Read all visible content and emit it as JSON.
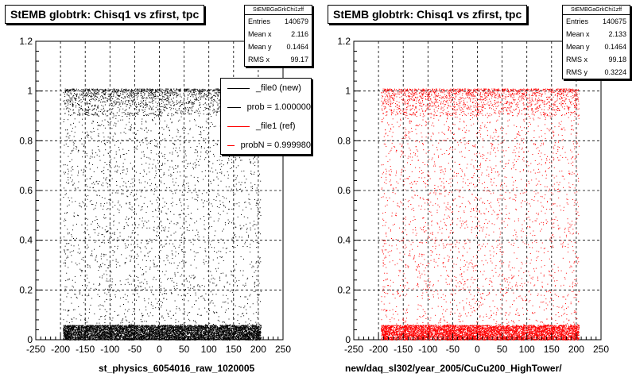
{
  "chart_data": [
    {
      "type": "scatter",
      "title": "StEMB globtrk: Chisq1 vs zfirst, tpc",
      "xlabel": "st_physics_6054016_raw_1020005",
      "ylabel": "",
      "xlim": [
        -250,
        250
      ],
      "ylim": [
        0,
        1.2
      ],
      "x_ticks": [
        "-250",
        "-200",
        "-150",
        "-100",
        "-50",
        "0",
        "50",
        "100",
        "150",
        "200",
        "250"
      ],
      "y_ticks": [
        "0",
        "0.2",
        "0.4",
        "0.6",
        "0.8",
        "1",
        "1.2"
      ],
      "grid": true,
      "marker_color": "#000000",
      "stats": {
        "name": "StEMBGaGrkChi1zff",
        "rows": [
          {
            "label": "Entries",
            "value": "140679"
          },
          {
            "label": "Mean x",
            "value": "2.116"
          },
          {
            "label": "Mean y",
            "value": "0.1464"
          },
          {
            "label": "RMS x",
            "value": "99.17"
          }
        ]
      },
      "series": [
        {
          "name": "_file0 (new)",
          "color": "#000000",
          "bands": [
            {
              "x": [
                -195,
                205
              ],
              "y": [
                0.0,
                0.06
              ],
              "density": "very high"
            },
            {
              "x": [
                -195,
                205
              ],
              "y": [
                0.9,
                1.01
              ],
              "density": "high"
            },
            {
              "x": [
                -195,
                205
              ],
              "y": [
                0.06,
                0.9
              ],
              "density": "low"
            }
          ]
        }
      ],
      "legend": {
        "position": "top-right",
        "entries": [
          {
            "label": "_file0 (new)",
            "color": "#000000"
          },
          {
            "label": "prob = 1.000000",
            "color": "#000000"
          },
          {
            "label": "_file1 (ref)",
            "color": "#ff0000"
          },
          {
            "label": "probN = 0.999980",
            "color": "#ff0000"
          }
        ]
      }
    },
    {
      "type": "scatter",
      "title": "StEMB globtrk: Chisq1 vs zfirst, tpc",
      "xlabel": "new/daq_sl302/year_2005/CuCu200_HighTower/",
      "ylabel": "",
      "xlim": [
        -250,
        250
      ],
      "ylim": [
        0,
        1.2
      ],
      "x_ticks": [
        "-250",
        "-200",
        "-150",
        "-100",
        "-50",
        "0",
        "50",
        "100",
        "150",
        "200",
        "250"
      ],
      "y_ticks": [
        "0",
        "0.2",
        "0.4",
        "0.6",
        "0.8",
        "1",
        "1.2"
      ],
      "grid": true,
      "marker_color": "#ff0000",
      "stats": {
        "name": "StEMBGaGrkChi1zff",
        "rows": [
          {
            "label": "Entries",
            "value": "140675"
          },
          {
            "label": "Mean x",
            "value": "2.133"
          },
          {
            "label": "Mean y",
            "value": "0.1464"
          },
          {
            "label": "RMS x",
            "value": "99.18"
          },
          {
            "label": "RMS y",
            "value": "0.3224"
          }
        ]
      },
      "series": [
        {
          "name": "_file1 (ref)",
          "color": "#ff0000",
          "bands": [
            {
              "x": [
                -195,
                205
              ],
              "y": [
                0.0,
                0.06
              ],
              "density": "very high"
            },
            {
              "x": [
                -195,
                205
              ],
              "y": [
                0.9,
                1.01
              ],
              "density": "high"
            },
            {
              "x": [
                -195,
                205
              ],
              "y": [
                0.06,
                0.9
              ],
              "density": "low"
            }
          ]
        }
      ]
    }
  ]
}
